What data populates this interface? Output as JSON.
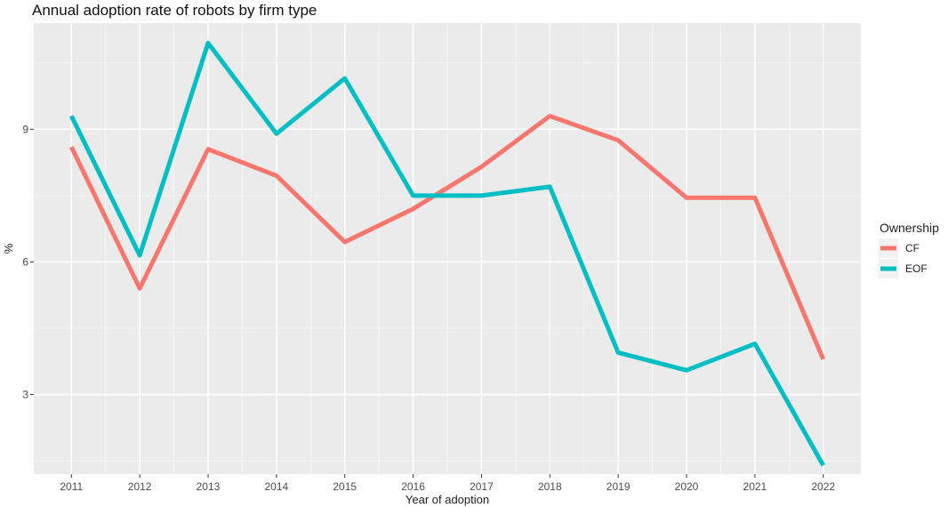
{
  "chart_data": {
    "type": "line",
    "title": "Annual adoption rate of robots by firm type",
    "xlabel": "Year of adoption",
    "ylabel": "%",
    "x": [
      "2011",
      "2012",
      "2013",
      "2014",
      "2015",
      "2016",
      "2017",
      "2018",
      "2019",
      "2020",
      "2021",
      "2022"
    ],
    "ylim": [
      1.2,
      11.4
    ],
    "yticks": [
      3,
      6,
      9
    ],
    "grid": true,
    "legend": {
      "title": "Ownership",
      "position": "right"
    },
    "series": [
      {
        "name": "CF",
        "color": "#f8766d",
        "values": [
          8.6,
          5.4,
          8.55,
          7.95,
          6.45,
          7.2,
          8.15,
          9.3,
          8.75,
          7.45,
          7.45,
          3.8
        ]
      },
      {
        "name": "EOF",
        "color": "#00bfc4",
        "values": [
          9.3,
          6.15,
          10.95,
          8.9,
          10.15,
          7.5,
          7.5,
          7.7,
          3.95,
          3.55,
          4.15,
          1.4
        ]
      }
    ]
  }
}
